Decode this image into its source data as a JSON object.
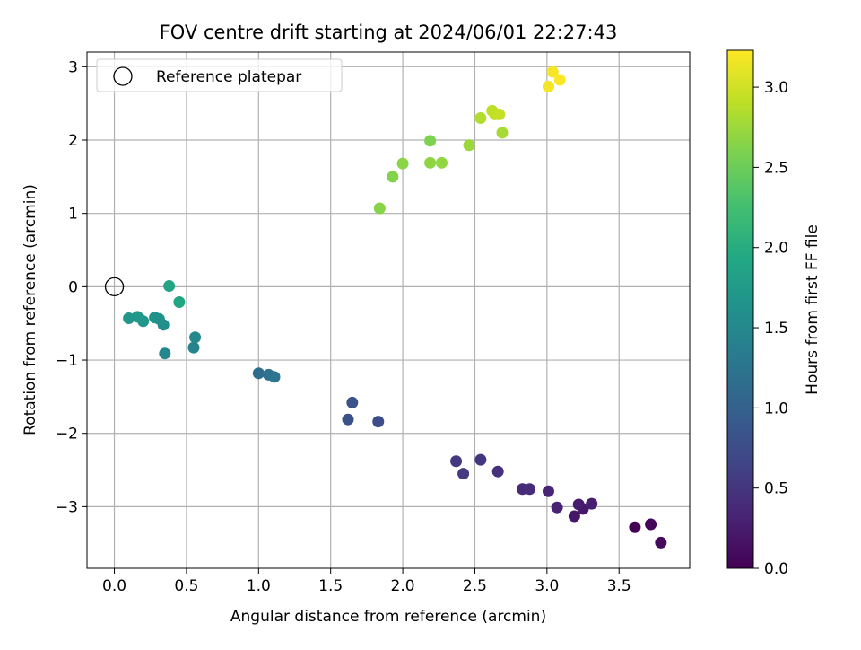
{
  "chart_data": {
    "type": "scatter",
    "title": "FOV centre drift starting at 2024/06/01 22:27:43",
    "xlabel": "Angular distance from reference (arcmin)",
    "ylabel": "Rotation from reference (arcmin)",
    "xlim": [
      -0.19,
      3.99
    ],
    "ylim": [
      -3.84,
      3.2
    ],
    "xticks": [
      0.0,
      0.5,
      1.0,
      1.5,
      2.0,
      2.5,
      3.0,
      3.5
    ],
    "xtick_labels": [
      "0.0",
      "0.5",
      "1.0",
      "1.5",
      "2.0",
      "2.5",
      "3.0",
      "3.5"
    ],
    "yticks": [
      -3,
      -2,
      -1,
      0,
      1,
      2,
      3
    ],
    "ytick_labels": [
      "−3",
      "−2",
      "−1",
      "0",
      "1",
      "2",
      "3"
    ],
    "grid": true,
    "legend": {
      "position": "top-left",
      "entries": [
        "Reference platepar"
      ]
    },
    "reference_point": {
      "x": 0.0,
      "y": 0.0
    },
    "colorbar": {
      "label": "Hours from first FF file",
      "range": [
        0.0,
        3.23
      ],
      "ticks": [
        0.0,
        0.5,
        1.0,
        1.5,
        2.0,
        2.5,
        3.0
      ],
      "tick_labels": [
        "0.0",
        "0.5",
        "1.0",
        "1.5",
        "2.0",
        "2.5",
        "3.0"
      ],
      "colormap": "viridis"
    },
    "points": [
      {
        "x": 3.61,
        "y": -3.28,
        "c": 0.0
      },
      {
        "x": 3.72,
        "y": -3.24,
        "c": 0.05
      },
      {
        "x": 3.79,
        "y": -3.49,
        "c": 0.08
      },
      {
        "x": 3.19,
        "y": -3.13,
        "c": 0.2
      },
      {
        "x": 3.25,
        "y": -3.03,
        "c": 0.22
      },
      {
        "x": 3.22,
        "y": -2.97,
        "c": 0.25
      },
      {
        "x": 3.31,
        "y": -2.96,
        "c": 0.27
      },
      {
        "x": 3.07,
        "y": -3.01,
        "c": 0.3
      },
      {
        "x": 3.01,
        "y": -2.79,
        "c": 0.33
      },
      {
        "x": 2.83,
        "y": -2.76,
        "c": 0.38
      },
      {
        "x": 2.88,
        "y": -2.76,
        "c": 0.4
      },
      {
        "x": 2.66,
        "y": -2.52,
        "c": 0.45
      },
      {
        "x": 2.54,
        "y": -2.36,
        "c": 0.5
      },
      {
        "x": 2.37,
        "y": -2.38,
        "c": 0.52
      },
      {
        "x": 2.42,
        "y": -2.55,
        "c": 0.55
      },
      {
        "x": 1.83,
        "y": -1.84,
        "c": 0.75
      },
      {
        "x": 1.62,
        "y": -1.81,
        "c": 0.8
      },
      {
        "x": 1.65,
        "y": -1.58,
        "c": 0.82
      },
      {
        "x": 1.0,
        "y": -1.18,
        "c": 1.15
      },
      {
        "x": 1.07,
        "y": -1.2,
        "c": 1.2
      },
      {
        "x": 1.11,
        "y": -1.23,
        "c": 1.25
      },
      {
        "x": 0.55,
        "y": -0.83,
        "c": 1.45
      },
      {
        "x": 0.56,
        "y": -0.69,
        "c": 1.5
      },
      {
        "x": 0.35,
        "y": -0.91,
        "c": 1.48
      },
      {
        "x": 0.34,
        "y": -0.52,
        "c": 1.6
      },
      {
        "x": 0.28,
        "y": -0.42,
        "c": 1.65
      },
      {
        "x": 0.31,
        "y": -0.44,
        "c": 1.62
      },
      {
        "x": 0.2,
        "y": -0.47,
        "c": 1.7
      },
      {
        "x": 0.16,
        "y": -0.41,
        "c": 1.72
      },
      {
        "x": 0.1,
        "y": -0.43,
        "c": 1.68
      },
      {
        "x": 0.38,
        "y": 0.01,
        "c": 1.88
      },
      {
        "x": 0.45,
        "y": -0.21,
        "c": 1.9
      },
      {
        "x": 1.84,
        "y": 1.07,
        "c": 2.65
      },
      {
        "x": 1.93,
        "y": 1.5,
        "c": 2.62
      },
      {
        "x": 2.0,
        "y": 1.68,
        "c": 2.66
      },
      {
        "x": 2.19,
        "y": 1.69,
        "c": 2.68
      },
      {
        "x": 2.27,
        "y": 1.69,
        "c": 2.7
      },
      {
        "x": 2.19,
        "y": 1.99,
        "c": 2.6
      },
      {
        "x": 2.46,
        "y": 1.93,
        "c": 2.75
      },
      {
        "x": 2.69,
        "y": 2.1,
        "c": 2.8
      },
      {
        "x": 2.54,
        "y": 2.3,
        "c": 2.85
      },
      {
        "x": 2.62,
        "y": 2.4,
        "c": 2.9
      },
      {
        "x": 2.64,
        "y": 2.35,
        "c": 2.92
      },
      {
        "x": 2.67,
        "y": 2.35,
        "c": 2.95
      },
      {
        "x": 3.01,
        "y": 2.73,
        "c": 3.18
      },
      {
        "x": 3.04,
        "y": 2.93,
        "c": 3.2
      },
      {
        "x": 3.09,
        "y": 2.82,
        "c": 3.22
      }
    ]
  }
}
